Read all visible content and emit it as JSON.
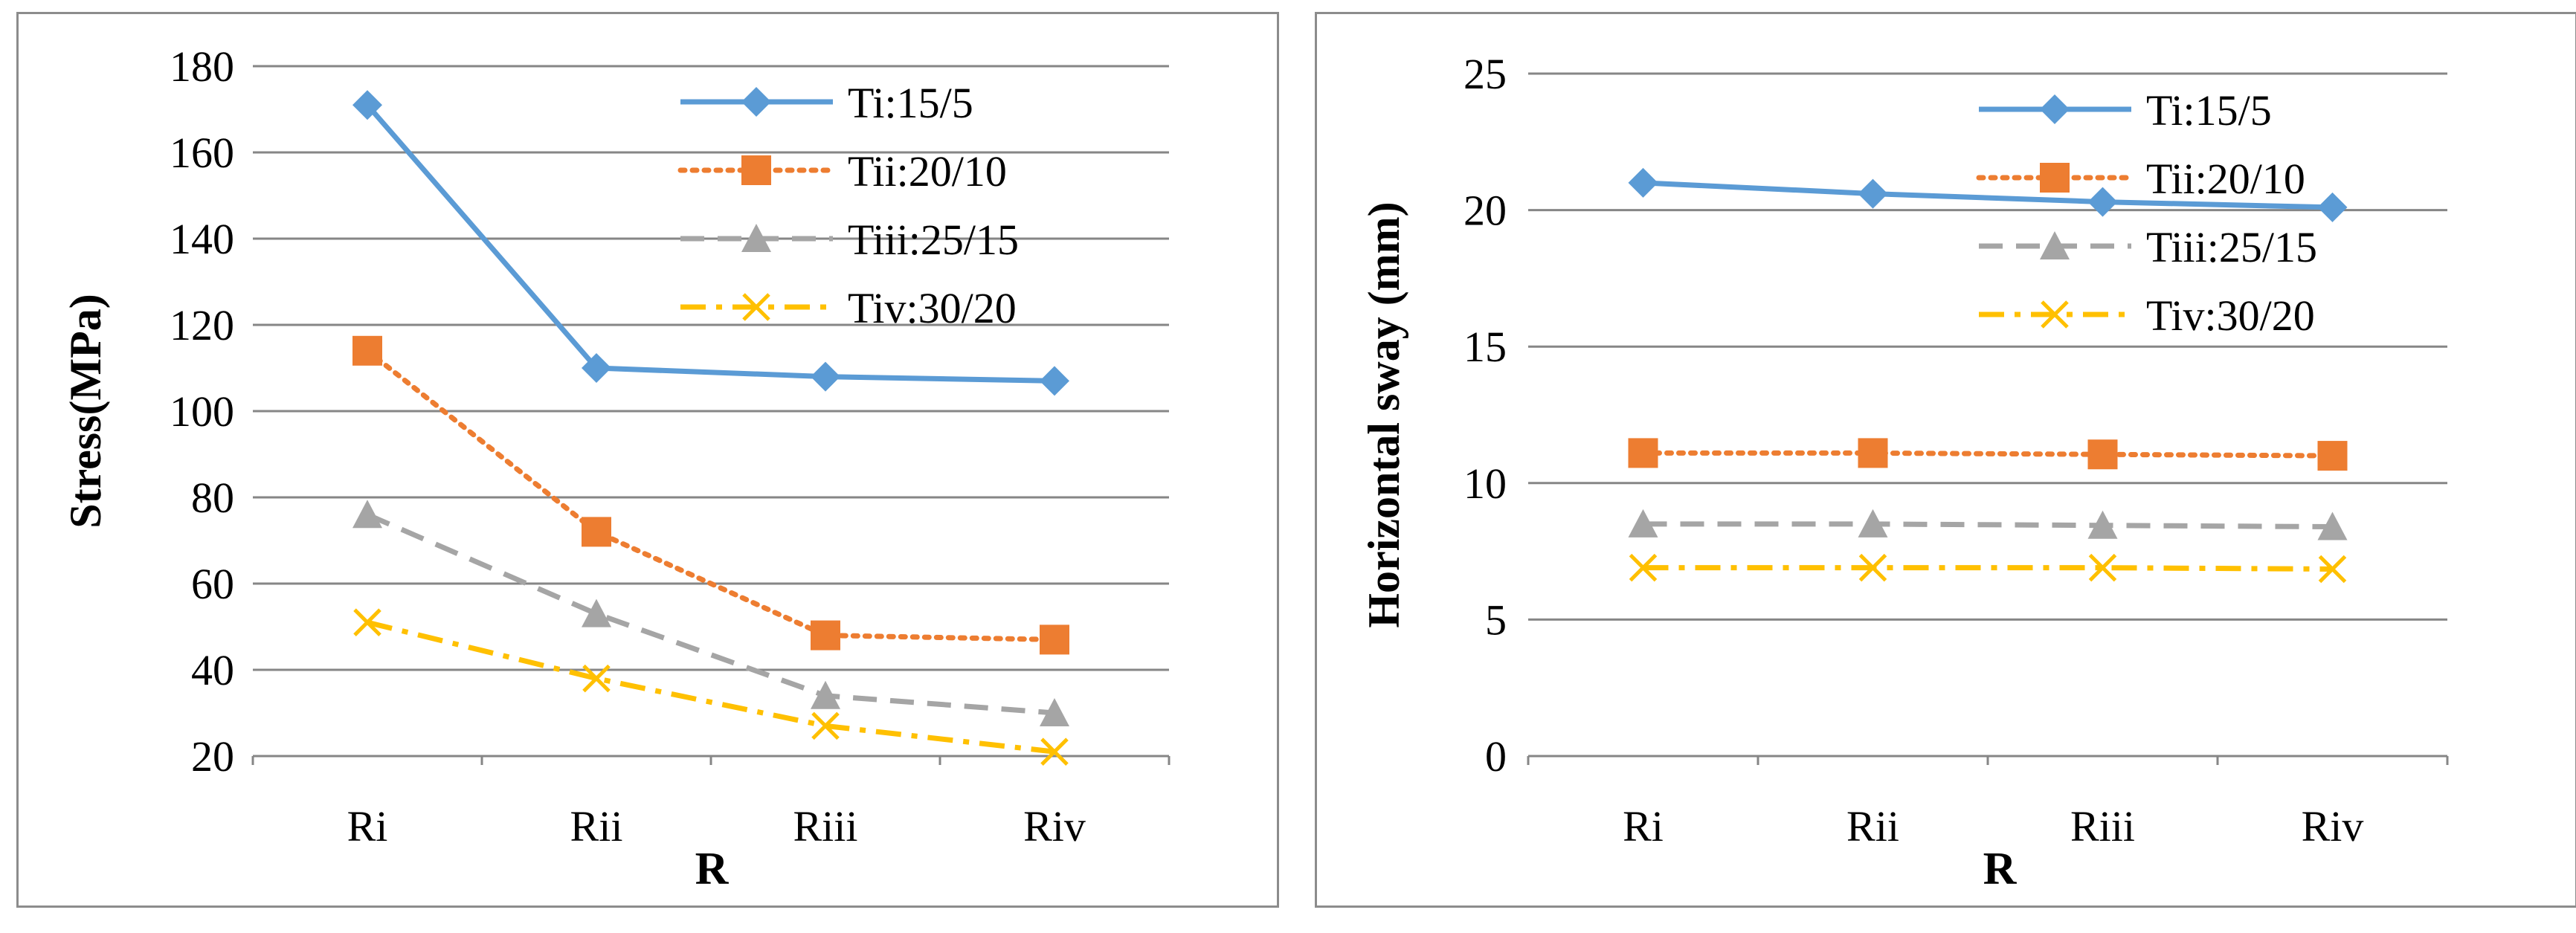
{
  "chart_data": [
    {
      "type": "line",
      "title": "",
      "xlabel": "R",
      "ylabel": "Stress(MPa)",
      "categories": [
        "Ri",
        "Rii",
        "Riii",
        "Riv"
      ],
      "ylim": [
        20,
        180
      ],
      "yticks": [
        20,
        40,
        60,
        80,
        100,
        120,
        140,
        160,
        180
      ],
      "grid": true,
      "legend_position": "top-right",
      "series": [
        {
          "name": "Ti:15/5",
          "values": [
            171,
            110,
            108,
            107
          ],
          "color": "#5B9BD5",
          "marker": "diamond",
          "line": "solid"
        },
        {
          "name": "Tii:20/10",
          "values": [
            114,
            72,
            48,
            47
          ],
          "color": "#ED7D31",
          "marker": "square",
          "line": "dotted"
        },
        {
          "name": "Tiii:25/15",
          "values": [
            76,
            53,
            34,
            30
          ],
          "color": "#A5A5A5",
          "marker": "triangle",
          "line": "dashed"
        },
        {
          "name": "Tiv:30/20",
          "values": [
            51,
            38,
            27,
            21
          ],
          "color": "#FFC000",
          "marker": "x",
          "line": "dashdot"
        }
      ]
    },
    {
      "type": "line",
      "title": "",
      "xlabel": "R",
      "ylabel": "Horizontal sway (mm)",
      "categories": [
        "Ri",
        "Rii",
        "Riii",
        "Riv"
      ],
      "ylim": [
        0,
        25
      ],
      "yticks": [
        0,
        5,
        10,
        15,
        20,
        25
      ],
      "grid": true,
      "legend_position": "top-right",
      "series": [
        {
          "name": "Ti:15/5",
          "values": [
            21.0,
            20.6,
            20.3,
            20.1
          ],
          "color": "#5B9BD5",
          "marker": "diamond",
          "line": "solid"
        },
        {
          "name": "Tii:20/10",
          "values": [
            11.1,
            11.1,
            11.05,
            11.0
          ],
          "color": "#ED7D31",
          "marker": "square",
          "line": "dotted"
        },
        {
          "name": "Tiii:25/15",
          "values": [
            8.5,
            8.5,
            8.45,
            8.4
          ],
          "color": "#A5A5A5",
          "marker": "triangle",
          "line": "dashed"
        },
        {
          "name": "Tiv:30/20",
          "values": [
            6.9,
            6.9,
            6.9,
            6.85
          ],
          "color": "#FFC000",
          "marker": "x",
          "line": "dashdot"
        }
      ]
    }
  ]
}
